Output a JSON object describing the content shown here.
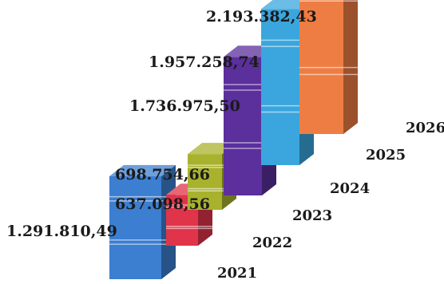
{
  "chart_data": {
    "type": "bar",
    "style": "3d-stepped-columns",
    "categories": [
      "2021",
      "2022",
      "2023",
      "2024",
      "2025",
      "2026"
    ],
    "values": [
      1291810.49,
      637098.56,
      698754.66,
      1736975.5,
      1957258.74,
      2193382.43
    ],
    "value_labels": [
      "1.291.810,49",
      "637.098,56",
      "698.754,66",
      "1.736.975,50",
      "1.957.258,74",
      "2.193.382,43"
    ],
    "colors": [
      "#3c7fd0",
      "#e0344a",
      "#a8b22c",
      "#5b2f9c",
      "#3aa6dd",
      "#ee7d44"
    ],
    "title": "",
    "xlabel": "",
    "ylabel": "",
    "grid": false,
    "legend": "none"
  }
}
